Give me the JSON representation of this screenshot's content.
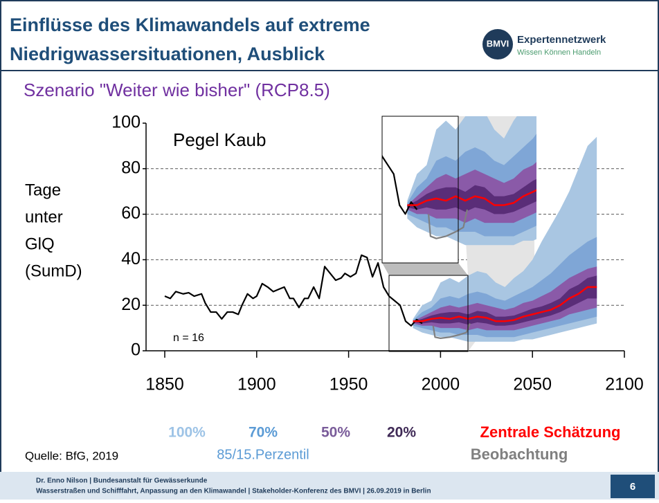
{
  "slide": {
    "title_lines": [
      "Einflüsse des Klimawandels  auf extreme",
      "Niedrigwassersituationen, Ausblick"
    ],
    "subtitle": "Szenario \"Weiter wie bisher\" (RCP8.5)",
    "logo": {
      "badge": "BMVI",
      "name": "Expertennetzwerk",
      "tagline": "Wissen Können Handeln"
    },
    "source": "Quelle: BfG, 2019",
    "footer_lines": [
      "Dr. Enno Nilson  |  Bundesanstalt für Gewässerkunde",
      "Wasserstraßen und Schifffahrt, Anpassung an den Klimawandel | Stakeholder-Konferenz des BMVI | 26.09.2019 in Berlin"
    ],
    "page": "6"
  },
  "chart_data": {
    "type": "line",
    "annotations": [
      "Pegel Kaub",
      "n = 16"
    ],
    "y_label_lines": [
      "Tage",
      "unter",
      "GlQ",
      "(SumD)"
    ],
    "xlim": [
      1850,
      2100
    ],
    "xticks": [
      1850,
      1900,
      1950,
      2000,
      2050,
      2100
    ],
    "ylim": [
      0,
      100
    ],
    "yticks": [
      0,
      20,
      40,
      60,
      80,
      100
    ],
    "grid": true,
    "band_x": [
      1985,
      1990,
      1995,
      2000,
      2005,
      2010,
      2015,
      2020,
      2025,
      2030,
      2035,
      2040,
      2045,
      2050,
      2055,
      2060,
      2065,
      2070,
      2075,
      2080,
      2085
    ],
    "bands": [
      {
        "name": "100%",
        "color": "#a9c6e2",
        "label_color": "#9dc3e6",
        "low": [
          10,
          8,
          7,
          6,
          6,
          5,
          4,
          4,
          4,
          4,
          4,
          4,
          5,
          5,
          6,
          7,
          8,
          9,
          10,
          11,
          12
        ],
        "high": [
          14,
          20,
          22,
          30,
          32,
          30,
          33,
          35,
          34,
          30,
          28,
          32,
          35,
          40,
          48,
          55,
          62,
          70,
          80,
          90,
          94
        ]
      },
      {
        "name": "70%",
        "color": "#7fa6d6",
        "label_color": "#5b9bd5",
        "low": [
          11,
          10,
          9,
          8,
          8,
          7,
          7,
          7,
          6,
          6,
          6,
          6,
          7,
          8,
          9,
          10,
          11,
          12,
          13,
          14,
          15
        ],
        "high": [
          13.5,
          17,
          19,
          23,
          24,
          23,
          25,
          26,
          25,
          23,
          22,
          24,
          26,
          28,
          31,
          34,
          38,
          42,
          45,
          48,
          50
        ]
      },
      {
        "name": "50%",
        "color": "#8a5aa8",
        "label_color": "#7a5c9a",
        "low": [
          12,
          11,
          11,
          10,
          10,
          10,
          9,
          10,
          9,
          9,
          9,
          9,
          10,
          11,
          12,
          13,
          14,
          16,
          17,
          18,
          19
        ],
        "high": [
          13,
          15,
          17,
          19,
          20,
          19,
          20,
          21,
          20,
          19,
          18,
          19,
          21,
          22,
          24,
          26,
          29,
          32,
          34,
          36,
          37
        ]
      },
      {
        "name": "20%",
        "color": "#5a2d78",
        "label_color": "#3f2a56",
        "low": [
          12.5,
          12,
          12.5,
          12,
          12,
          12.5,
          11.5,
          12.5,
          12,
          11,
          11,
          11.5,
          12.5,
          13.5,
          14.5,
          15.5,
          17,
          19,
          21,
          23,
          23
        ],
        "high": [
          13,
          14,
          15.5,
          16.5,
          17,
          17,
          16,
          17.5,
          17,
          15,
          15,
          15.5,
          17,
          18.5,
          19.5,
          21,
          23,
          27,
          29,
          32,
          33
        ]
      }
    ],
    "percentile_note": "85/15.Perzentil",
    "series": [
      {
        "color": "#000000",
        "x": [
          1850,
          1853,
          1856,
          1860,
          1863,
          1866,
          1870,
          1872,
          1875,
          1878,
          1881,
          1884,
          1887,
          1890,
          1892,
          1895,
          1898,
          1900,
          1903,
          1906,
          1909,
          1912,
          1915,
          1918,
          1920,
          1923,
          1926,
          1928,
          1931,
          1934,
          1937,
          1940,
          1943,
          1946,
          1948,
          1951,
          1954,
          1957,
          1960,
          1963,
          1966,
          1969,
          1972,
          1975,
          1978,
          1981,
          1984,
          1987,
          1990
        ],
        "values": [
          24,
          23,
          26,
          25,
          25.5,
          24,
          25,
          21,
          17,
          17,
          14,
          17,
          17,
          16,
          20,
          25,
          23,
          24,
          29.5,
          28,
          26,
          27,
          28,
          23,
          23,
          19,
          23,
          23,
          28,
          23,
          37,
          34,
          31,
          32,
          34,
          32.5,
          34,
          42,
          41,
          32.5,
          38.6,
          28,
          24,
          22,
          20,
          13,
          11,
          13.7,
          12
        ]
      },
      {
        "name": "Zentrale Schätzung",
        "color": "#ff0000",
        "x": [
          1985,
          1990,
          1995,
          2000,
          2005,
          2010,
          2015,
          2020,
          2025,
          2030,
          2035,
          2040,
          2045,
          2050,
          2055,
          2060,
          2065,
          2070,
          2075,
          2080,
          2085
        ],
        "values": [
          13,
          13,
          14,
          14.5,
          14,
          15,
          14,
          15,
          14.5,
          13,
          13,
          13.5,
          15,
          16,
          17,
          18,
          20,
          23,
          25,
          28,
          28
        ]
      },
      {
        "name": "Beobachtung",
        "color": "#7f7f7f",
        "x": [
          1996,
          1997,
          2000,
          2005,
          2010,
          2014,
          2016
        ],
        "values": [
          11,
          6,
          5.5,
          6,
          7,
          8,
          12
        ]
      }
    ]
  }
}
